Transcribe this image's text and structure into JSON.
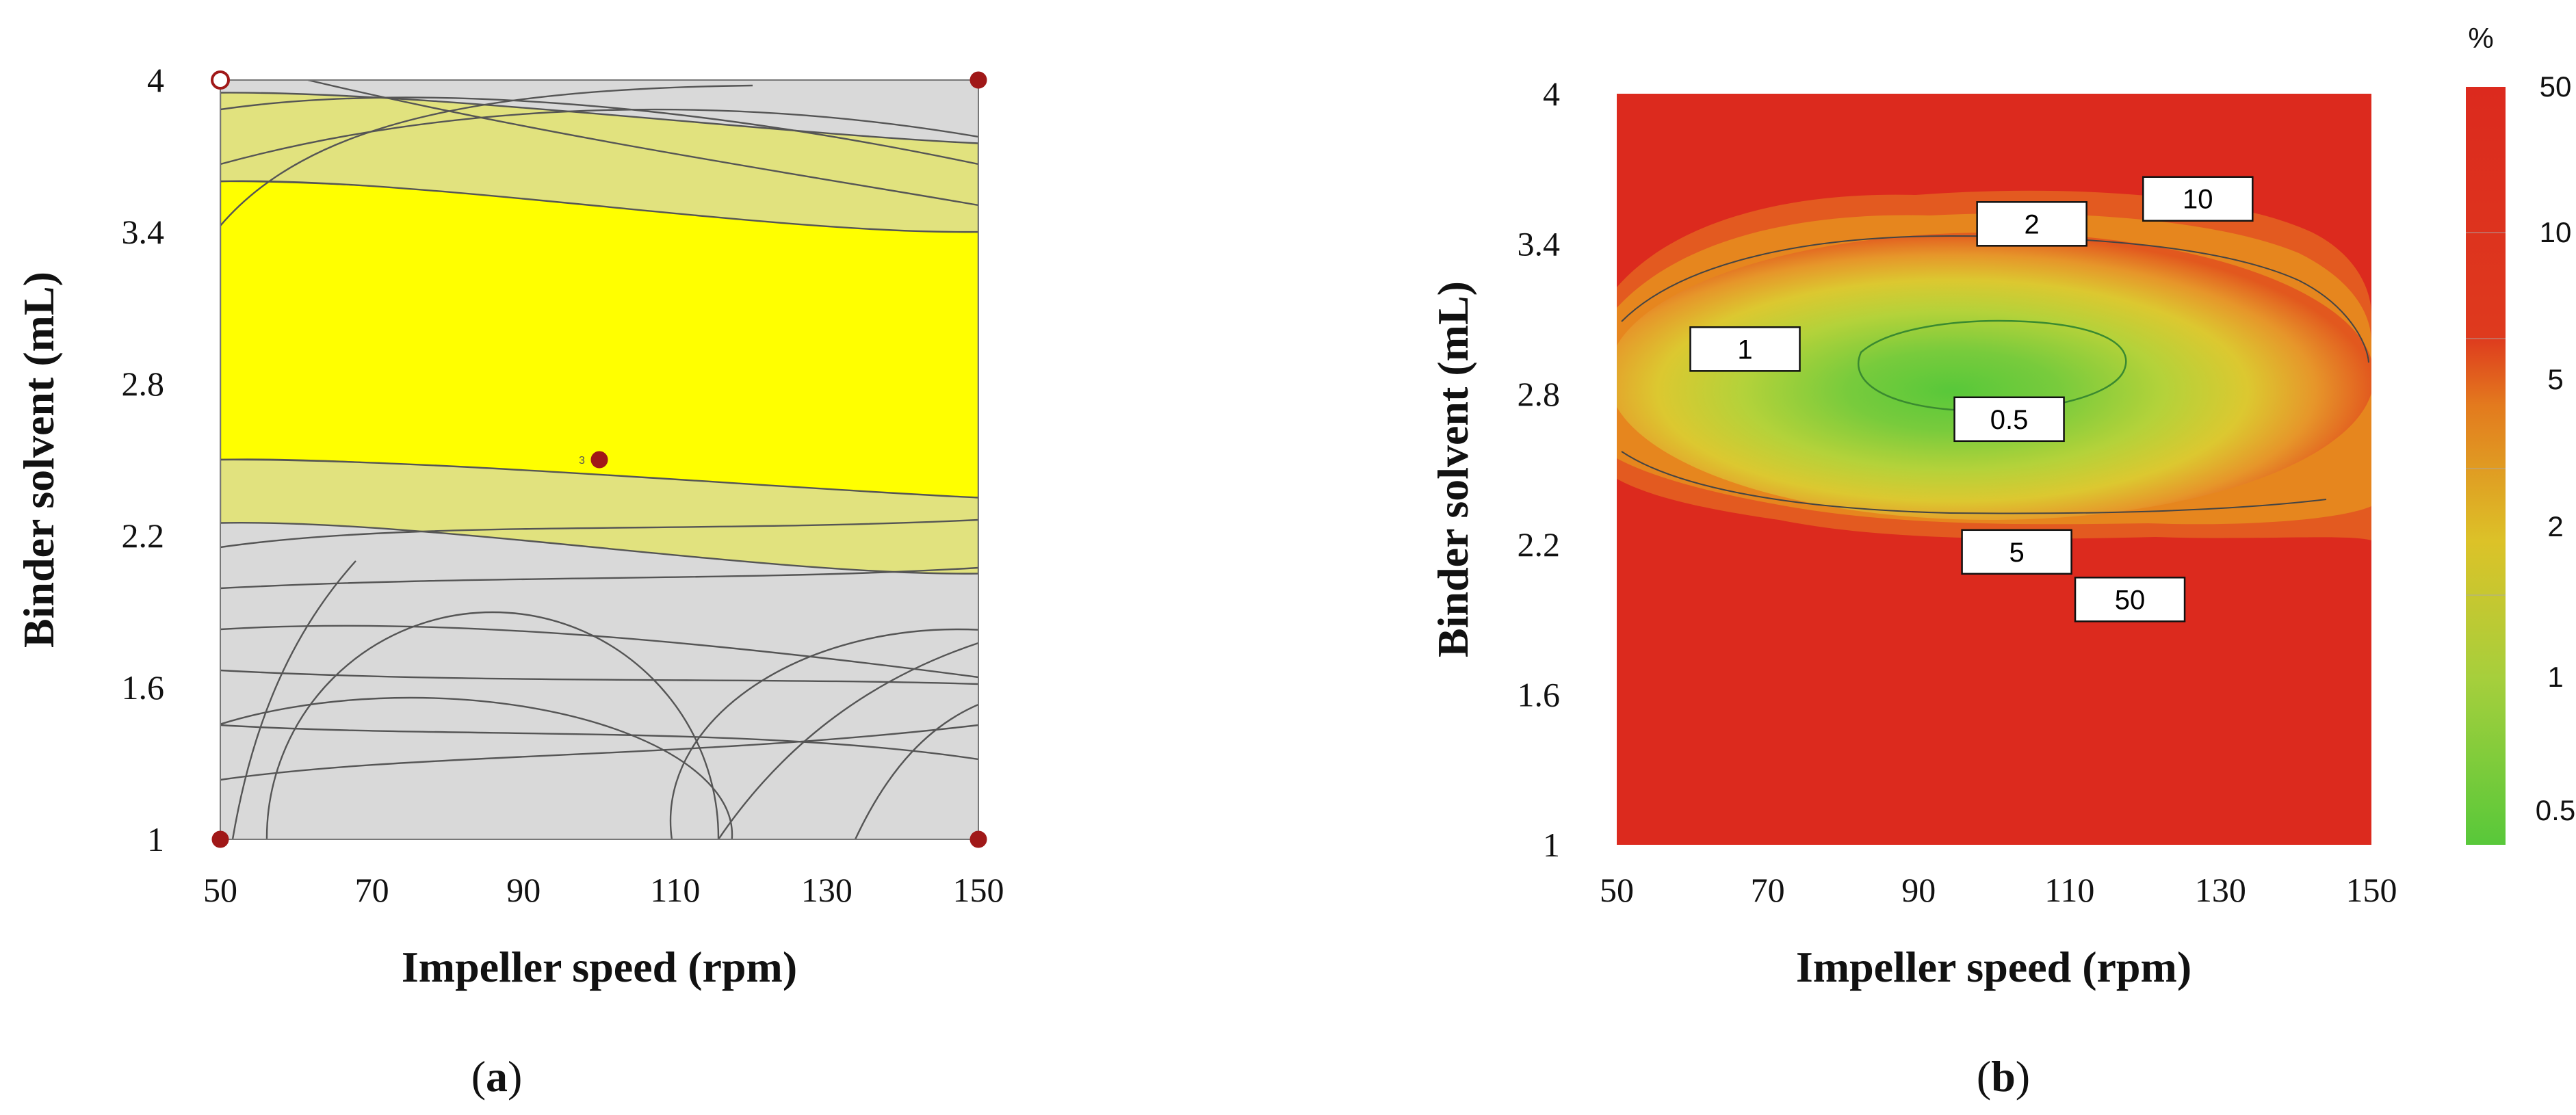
{
  "colors": {
    "region_gray": "#d9d9d9",
    "region_pale": "#e1e27e",
    "region_yellow": "#ffff00",
    "design_point": "#a01818",
    "map_red": "#dc2a1e",
    "map_orange": "#e8701e",
    "map_gold": "#dcc228",
    "map_lime": "#a8cf3c",
    "map_green": "#5cc83a"
  },
  "chart_data": [
    {
      "type": "contour",
      "panel_label_open": "(",
      "panel_label_letter": "a",
      "panel_label_close": ")",
      "xlabel": "Impeller speed (rpm)",
      "ylabel": "Binder solvent (mL)",
      "xlim": [
        50,
        150
      ],
      "ylim": [
        1,
        4
      ],
      "x_ticks": [
        "50",
        "70",
        "90",
        "110",
        "130",
        "150"
      ],
      "y_ticks": [
        "1",
        "1.6",
        "2.2",
        "2.8",
        "3.4",
        "4"
      ],
      "regions": [
        {
          "name": "yellow design space",
          "x": [
            50,
            150
          ],
          "y_low_at_x": [
            2.5,
            2.35
          ],
          "y_high_at_x": [
            3.6,
            3.4
          ]
        },
        {
          "name": "pale band upper",
          "x": [
            50,
            150
          ],
          "y_low_at_x": [
            3.6,
            3.4
          ],
          "y_high_at_x": [
            3.95,
            3.75
          ]
        },
        {
          "name": "pale band lower",
          "x": [
            50,
            150
          ],
          "y_low_at_x": [
            2.25,
            2.05
          ],
          "y_high_at_x": [
            2.5,
            2.35
          ]
        }
      ],
      "design_points": [
        {
          "x": 50,
          "y": 4,
          "open": true
        },
        {
          "x": 150,
          "y": 4,
          "open": false
        },
        {
          "x": 50,
          "y": 1,
          "open": false
        },
        {
          "x": 150,
          "y": 1,
          "open": false
        },
        {
          "x": 100,
          "y": 2.5,
          "open": false,
          "label": "3"
        }
      ]
    },
    {
      "type": "heatmap",
      "panel_label_open": "(",
      "panel_label_letter": "b",
      "panel_label_close": ")",
      "xlabel": "Impeller speed (rpm)",
      "ylabel": "Binder solvent (mL)",
      "xlim": [
        50,
        150
      ],
      "ylim": [
        1,
        4
      ],
      "x_ticks": [
        "50",
        "70",
        "90",
        "110",
        "130",
        "150"
      ],
      "y_ticks": [
        "1",
        "1.6",
        "2.2",
        "2.8",
        "3.4",
        "4"
      ],
      "unit": "%",
      "colorbar_ticks": [
        "50",
        "10",
        "5",
        "2",
        "1",
        "0.5"
      ],
      "contour_labels": [
        {
          "text": "10",
          "x": 127,
          "y": 3.58
        },
        {
          "text": "2",
          "x": 105,
          "y": 3.48
        },
        {
          "text": "1",
          "x": 67,
          "y": 2.98
        },
        {
          "text": "0.5",
          "x": 102,
          "y": 2.7
        },
        {
          "text": "5",
          "x": 103,
          "y": 2.17
        },
        {
          "text": "50",
          "x": 118,
          "y": 1.98
        }
      ],
      "minimum": {
        "x": 96,
        "y": 2.9,
        "value": 0.5
      }
    }
  ]
}
